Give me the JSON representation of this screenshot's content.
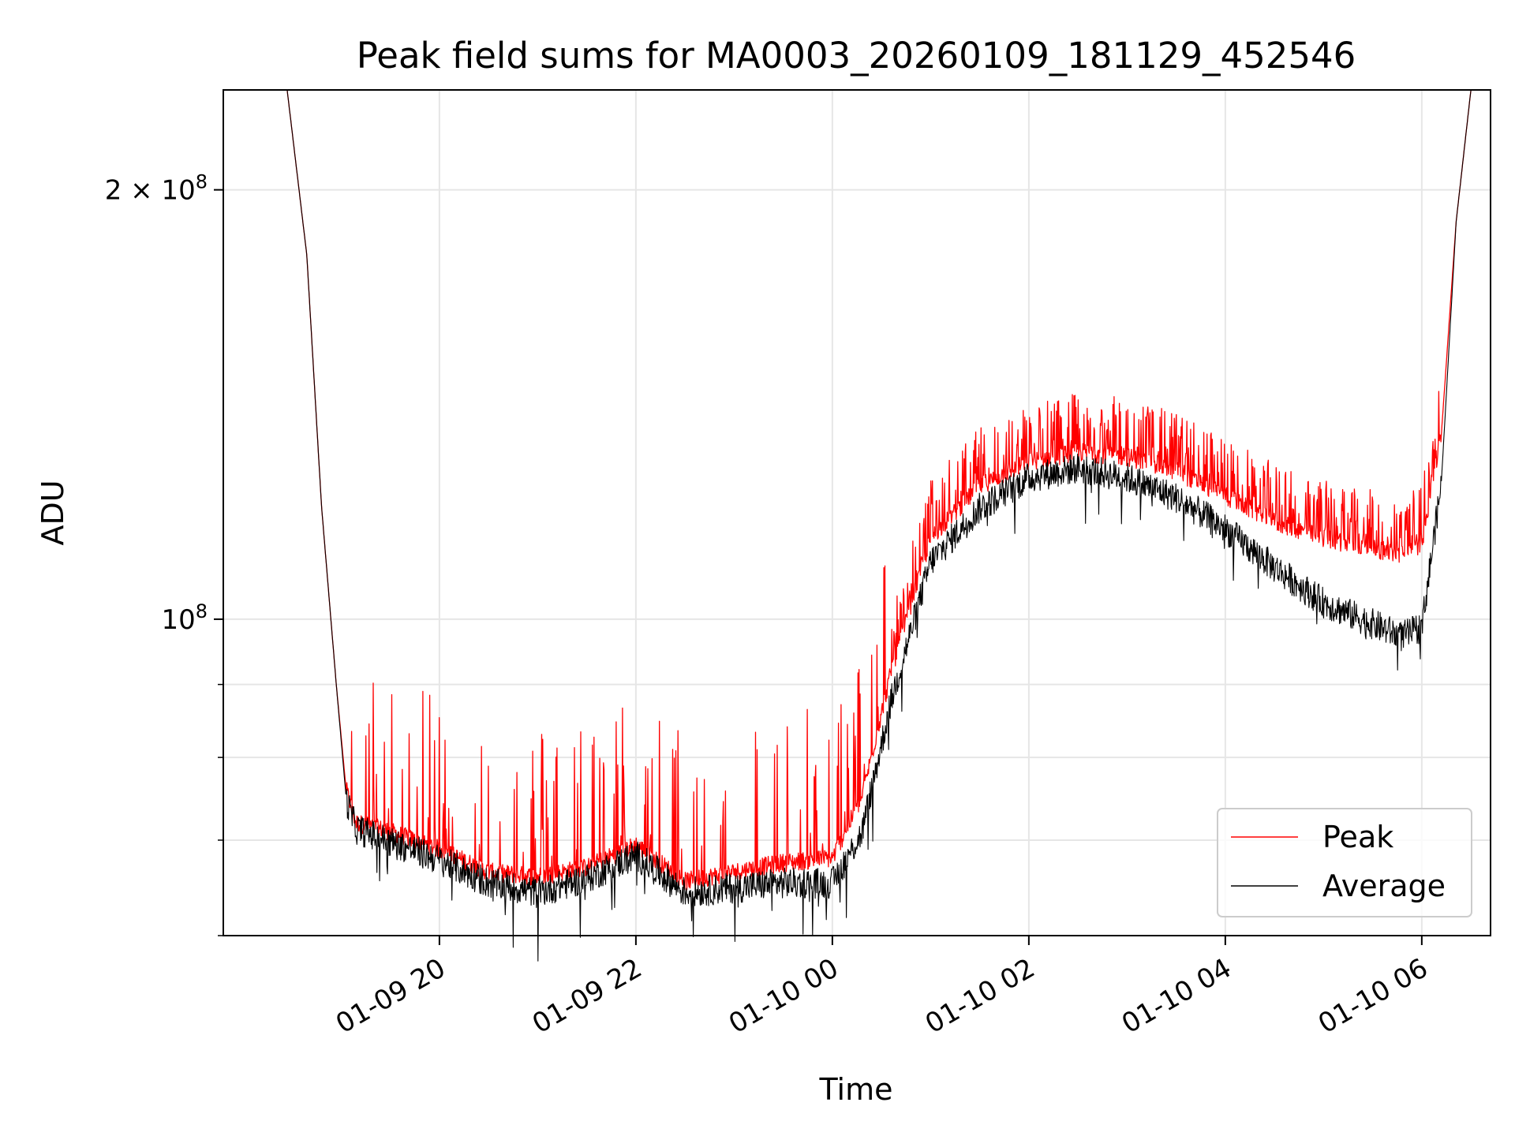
{
  "chart_data": {
    "type": "line",
    "title": "Peak field sums for MA0003_20260109_181129_452546",
    "xlabel": "Time",
    "ylabel": "ADU",
    "yscale": "log",
    "xlim_hours": [
      -2.2,
      10.7
    ],
    "ylim": [
      60000000,
      235000000
    ],
    "grid": true,
    "legend_position": "lower-right",
    "x_ticks": [
      {
        "hour": 0,
        "label": "01-09 20"
      },
      {
        "hour": 2,
        "label": "01-09 22"
      },
      {
        "hour": 4,
        "label": "01-10 00"
      },
      {
        "hour": 6,
        "label": "01-10 02"
      },
      {
        "hour": 8,
        "label": "01-10 04"
      },
      {
        "hour": 10,
        "label": "01-10 06"
      }
    ],
    "y_ticks": [
      {
        "value": 100000000,
        "base": "10",
        "exp": "8"
      },
      {
        "value": 200000000,
        "base": "2 × 10",
        "exp": "8"
      }
    ],
    "y_minor_ticks": [
      60000000,
      70000000,
      80000000,
      90000000
    ],
    "series": [
      {
        "name": "Peak",
        "color": "#ff0000",
        "hours": [
          -2.2,
          -1.55,
          -1.35,
          -1.2,
          -1.05,
          -0.95,
          -0.85,
          -0.5,
          0,
          0.5,
          1.0,
          1.5,
          2.0,
          2.5,
          3.0,
          3.5,
          4.0,
          4.3,
          4.6,
          5.0,
          5.5,
          6.0,
          6.5,
          7.0,
          7.5,
          8.0,
          8.5,
          9.0,
          9.5,
          9.8,
          10.0,
          10.2,
          10.35,
          10.5,
          10.7
        ],
        "values": [
          235000000,
          235000000,
          180000000,
          120000000,
          90000000,
          76000000,
          72000000,
          71000000,
          69000000,
          66500000,
          66000000,
          67000000,
          69500000,
          65500000,
          66500000,
          67500000,
          68000000,
          75000000,
          92000000,
          114000000,
          124000000,
          129000000,
          131000000,
          130000000,
          127000000,
          122000000,
          117000000,
          114000000,
          112000000,
          111000000,
          113000000,
          135000000,
          190000000,
          235000000,
          235000000
        ]
      },
      {
        "name": "Average",
        "color": "#000000",
        "hours": [
          -2.2,
          -1.55,
          -1.35,
          -1.2,
          -1.05,
          -0.95,
          -0.85,
          -0.5,
          0,
          0.5,
          1.0,
          1.5,
          2.0,
          2.5,
          3.0,
          3.5,
          4.0,
          4.3,
          4.6,
          5.0,
          5.5,
          6.0,
          6.5,
          7.0,
          7.5,
          8.0,
          8.5,
          9.0,
          9.5,
          9.8,
          10.0,
          10.2,
          10.35,
          10.5,
          10.7
        ],
        "values": [
          235000000,
          235000000,
          180000000,
          120000000,
          90000000,
          75000000,
          71500000,
          70000000,
          68000000,
          65500000,
          64500000,
          66000000,
          68500000,
          64500000,
          65000000,
          65500000,
          65500000,
          71000000,
          88000000,
          110000000,
          120000000,
          126000000,
          128000000,
          126000000,
          122000000,
          116000000,
          109000000,
          103000000,
          99500000,
          97500000,
          99000000,
          125000000,
          190000000,
          235000000,
          235000000
        ]
      }
    ]
  }
}
